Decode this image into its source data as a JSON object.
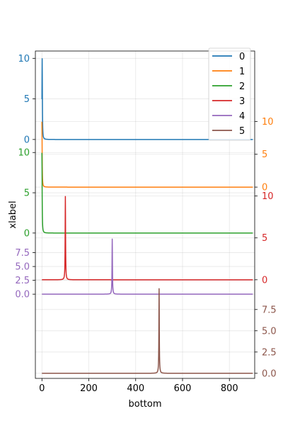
{
  "chart_data": {
    "type": "line",
    "title": "",
    "xlabel": "bottom",
    "ylabel": "xlabel",
    "xlim": [
      -28,
      908
    ],
    "x_ticks": [
      0,
      200,
      400,
      600,
      800
    ],
    "grid": true,
    "legend_placement": "top-right",
    "series": [
      {
        "name": "0",
        "color": "#1f77b4",
        "peak_x": 1,
        "peak_y": 9.95,
        "width": 1.0,
        "baseline": 0.0,
        "axis_side": "left",
        "ylim": [
          -0.1,
          10.9
        ],
        "ticks": [
          0,
          5,
          10
        ],
        "tick_labels": [
          "0",
          "5",
          "10"
        ]
      },
      {
        "name": "1",
        "color": "#ff7f0e",
        "peak_x": 0,
        "peak_y": 9.95,
        "width": 1.0,
        "baseline": 0.0,
        "axis_side": "right",
        "ylim": [
          -0.1,
          15.0
        ],
        "ticks": [
          0,
          5,
          10
        ],
        "tick_labels": [
          "0",
          "5",
          "10"
        ]
      },
      {
        "name": "2",
        "color": "#2ca02c",
        "peak_x": 0,
        "peak_y": 9.95,
        "width": 1.0,
        "baseline": 0.0,
        "axis_side": "left",
        "ylim": [
          -0.1,
          10.9
        ],
        "ticks": [
          0,
          5,
          10
        ],
        "tick_labels": [
          "0",
          "5",
          "10"
        ]
      },
      {
        "name": "3",
        "color": "#d62728",
        "peak_x": 100,
        "peak_y": 9.95,
        "width": 1.0,
        "baseline": 0.0,
        "axis_side": "right",
        "ylim": [
          -0.1,
          10.9
        ],
        "ticks": [
          0,
          5,
          10
        ],
        "tick_labels": [
          "0",
          "5",
          "10"
        ]
      },
      {
        "name": "4",
        "color": "#9467bd",
        "peak_x": 300,
        "peak_y": 9.95,
        "width": 1.0,
        "baseline": 0.0,
        "axis_side": "left",
        "ylim": [
          -6.0,
          10.9
        ],
        "ticks": [
          0,
          2.5,
          5,
          7.5
        ],
        "tick_labels": [
          "0.0",
          "2.5",
          "5.0",
          "7.5"
        ]
      },
      {
        "name": "5",
        "color": "#8c564b",
        "peak_x": 500,
        "peak_y": 9.95,
        "width": 1.0,
        "baseline": 0.0,
        "axis_side": "right",
        "ylim": [
          -0.1,
          10.9
        ],
        "ticks": [
          0,
          2.5,
          5,
          7.5
        ],
        "tick_labels": [
          "0.0",
          "2.5",
          "5.0",
          "7.5"
        ]
      }
    ]
  }
}
